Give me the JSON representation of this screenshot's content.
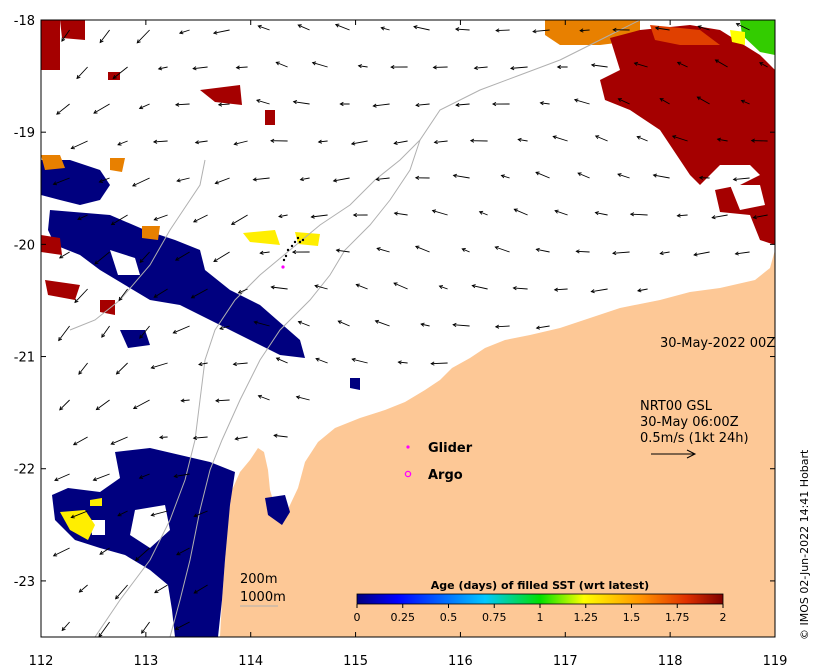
{
  "colors": {
    "land": "#fdc896",
    "sst_age_low": "#00007f",
    "sst_age_high": "#a50000",
    "glider_marker": "#ff00ff",
    "argo_marker": "#ff00ff"
  },
  "map": {
    "x_axis": {
      "range": [
        112,
        119
      ],
      "ticks": [
        "112",
        "113",
        "114",
        "115",
        "116",
        "117",
        "118",
        "119"
      ]
    },
    "y_axis": {
      "range": [
        -23.5,
        -18
      ],
      "ticks": [
        "-18",
        "-19",
        "-20",
        "-21",
        "-22",
        "-23"
      ]
    }
  },
  "annotations": {
    "date": "30-May-2022 00Z",
    "current_source": "NRT00 GSL",
    "current_time": "30-May 06:00Z",
    "current_scale": "0.5m/s (1kt 24h)",
    "isobath_200": "200m",
    "isobath_1000": "1000m"
  },
  "legend": {
    "glider_label": "Glider",
    "argo_label": "Argo"
  },
  "colorbar": {
    "title": "Age (days) of filled SST (wrt latest)",
    "ticks": [
      "0",
      "0.25",
      "0.5",
      "0.75",
      "1",
      "1.25",
      "1.5",
      "1.75",
      "2"
    ]
  },
  "credit": "© IMOS 02-Jun-2022 14:41 Hobart"
}
